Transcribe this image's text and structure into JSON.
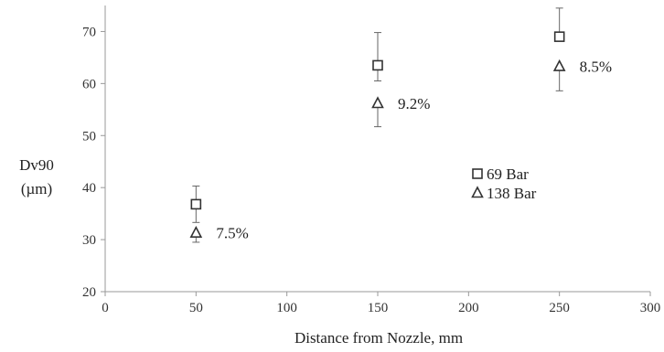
{
  "chart_data": {
    "type": "scatter",
    "xlabel": "Distance from Nozzle, mm",
    "ylabel_line1": "Dv90",
    "ylabel_line2": "(µm)",
    "xlim": [
      0,
      300
    ],
    "ylim": [
      20,
      75
    ],
    "xticks": [
      0,
      50,
      100,
      150,
      200,
      250,
      300
    ],
    "yticks": [
      20,
      30,
      40,
      50,
      60,
      70
    ],
    "grid": false,
    "legend_position": "center-right",
    "series": [
      {
        "name": "69 Bar",
        "marker": "square",
        "x": [
          50,
          150,
          250
        ],
        "y": [
          36.8,
          63.5,
          69
        ],
        "err_low": [
          3.5,
          3,
          0
        ],
        "err_high": [
          3.5,
          6.3,
          5.5
        ]
      },
      {
        "name": "138 Bar",
        "marker": "triangle",
        "x": [
          50,
          150,
          250
        ],
        "y": [
          31.3,
          56.2,
          63.3
        ],
        "err_low": [
          1.8,
          4.5,
          4.7
        ],
        "err_high": [
          0,
          0,
          0
        ]
      }
    ],
    "annotations": [
      {
        "text": "7.5%",
        "x": 50,
        "y": 31.3
      },
      {
        "text": "9.2%",
        "x": 150,
        "y": 56.2
      },
      {
        "text": "8.5%",
        "x": 250,
        "y": 63.3
      }
    ]
  }
}
